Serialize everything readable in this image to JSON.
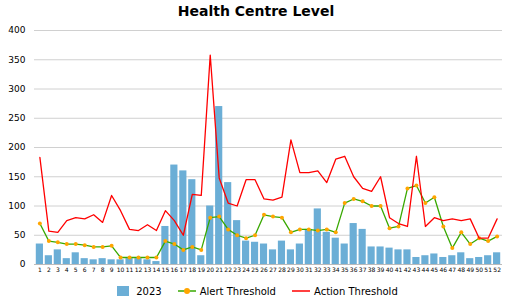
{
  "chart_data": {
    "type": "bar",
    "title": "Health Centre Level",
    "categories": [
      1,
      2,
      3,
      4,
      5,
      6,
      7,
      8,
      9,
      10,
      11,
      12,
      13,
      14,
      15,
      16,
      17,
      18,
      19,
      20,
      21,
      22,
      23,
      24,
      25,
      26,
      27,
      28,
      29,
      30,
      31,
      32,
      33,
      34,
      35,
      36,
      37,
      38,
      39,
      40,
      41,
      42,
      43,
      44,
      45,
      46,
      47,
      48,
      49,
      50,
      51,
      52
    ],
    "series": [
      {
        "name": "2023",
        "type": "bar",
        "color": "#6baed6",
        "values": [
          35,
          15,
          25,
          10,
          20,
          10,
          8,
          10,
          8,
          8,
          10,
          10,
          8,
          5,
          65,
          170,
          160,
          145,
          15,
          100,
          270,
          140,
          75,
          40,
          38,
          35,
          25,
          40,
          25,
          35,
          60,
          95,
          55,
          45,
          35,
          70,
          60,
          30,
          30,
          28,
          25,
          25,
          12,
          15,
          18,
          12,
          15,
          20,
          10,
          12,
          15,
          20
        ]
      },
      {
        "name": "Alert Threshold",
        "type": "line",
        "color": "#38A800",
        "marker": "circle",
        "colors": [
          "#FFA500",
          "#FFA500",
          "#FFA500",
          "#FFA500",
          "#FFA500",
          "#FFA500",
          "#FFA500",
          "#FFA500",
          "#FFA500",
          "#FFA500",
          "#FFA500",
          "#FFA500",
          "#FFA500",
          "#FFA500",
          "#FFA500",
          "#FFA500",
          "#FFA500",
          "#FFA500",
          "#FFA500",
          "#FFA500",
          "#FFA500",
          "#FFA500",
          "#FFA500",
          "#FFA500",
          "#FFA500",
          "#FFA500",
          "#FFA500",
          "#FFA500",
          "#FFA500",
          "#FFA500",
          "#FFA500",
          "#FFA500",
          "#FFA500",
          "#FFA500",
          "#FFA500",
          "#FFA500",
          "#FFA500",
          "#FFA500",
          "#FFA500",
          "#FFA500",
          "#FFA500",
          "#FFA500",
          "#FFA500",
          "#FFA500",
          "#FFA500",
          "#FFA500",
          "#FFA500",
          "#FFA500",
          "#FFA500",
          "#FFA500",
          "#FFA500",
          "#FFA500"
        ],
        "values": [
          70,
          40,
          38,
          35,
          35,
          33,
          30,
          30,
          32,
          12,
          12,
          12,
          12,
          12,
          40,
          35,
          25,
          30,
          25,
          80,
          82,
          60,
          50,
          45,
          50,
          85,
          82,
          80,
          55,
          60,
          60,
          58,
          60,
          55,
          105,
          112,
          108,
          100,
          100,
          62,
          65,
          130,
          135,
          105,
          115,
          65,
          28,
          55,
          35,
          45,
          40,
          48
        ]
      },
      {
        "name": "Action Threshold",
        "type": "line",
        "color": "#FF0000",
        "values": [
          183,
          57,
          55,
          75,
          80,
          78,
          85,
          72,
          118,
          92,
          60,
          58,
          68,
          58,
          92,
          75,
          50,
          120,
          118,
          358,
          148,
          105,
          100,
          145,
          145,
          112,
          110,
          115,
          213,
          157,
          157,
          160,
          140,
          180,
          185,
          150,
          130,
          125,
          150,
          80,
          70,
          65,
          185,
          65,
          80,
          75,
          78,
          75,
          78,
          45,
          45,
          78
        ]
      }
    ],
    "ylim": [
      0,
      400
    ],
    "yticks": [
      0,
      50,
      100,
      150,
      200,
      250,
      300,
      350,
      400
    ],
    "grid": true,
    "legend": "bottom"
  }
}
